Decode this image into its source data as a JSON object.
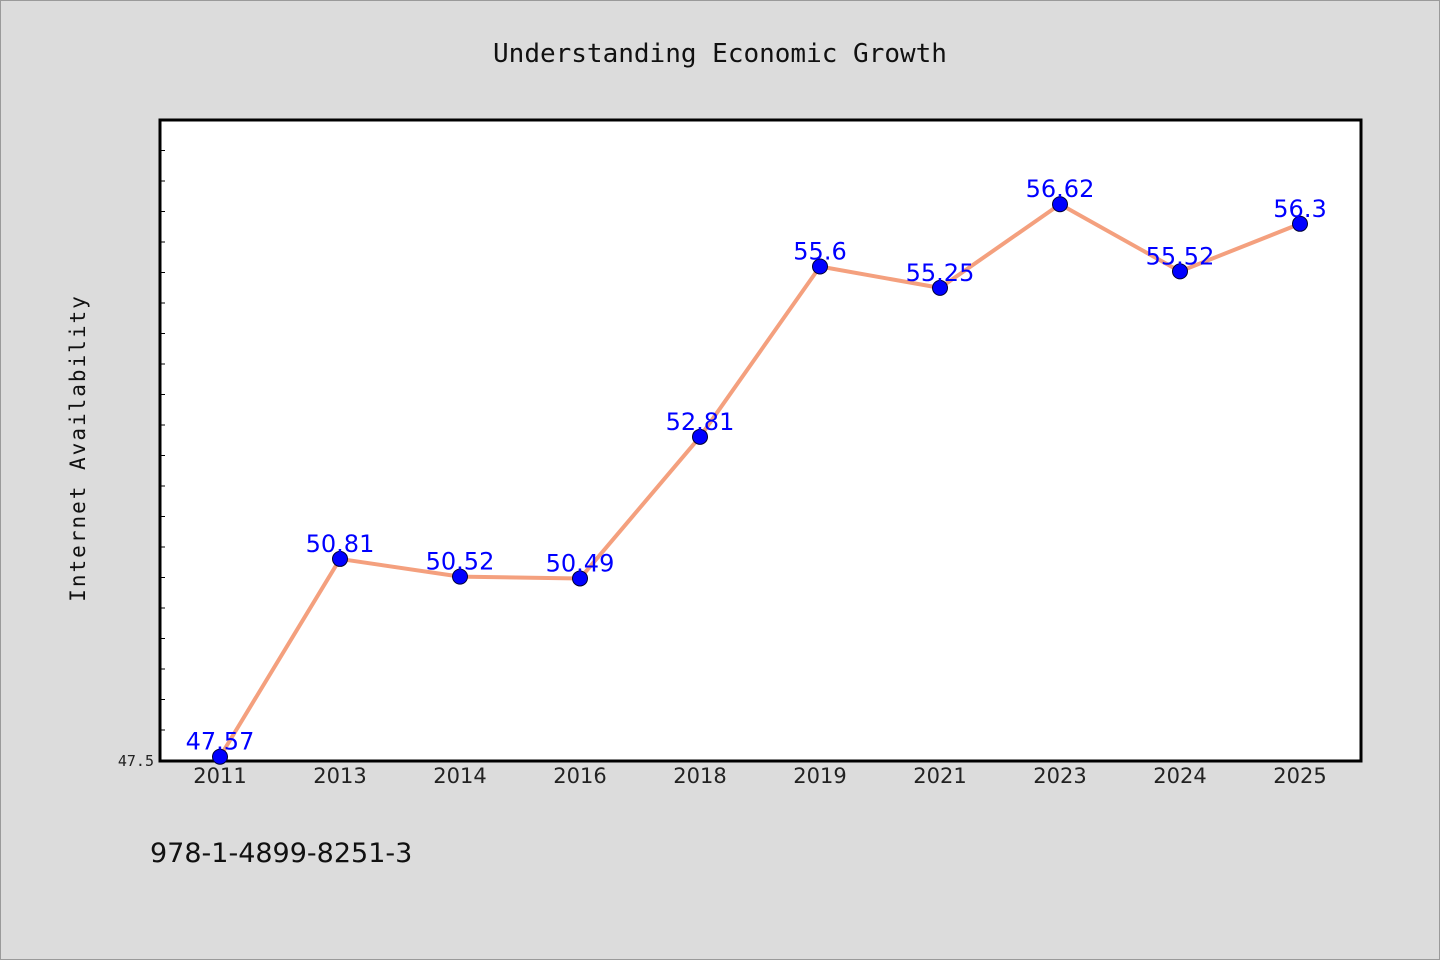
{
  "chart_data": {
    "type": "line",
    "title": "Understanding Economic Growth",
    "ylabel": "Internet Availability",
    "xlabel": "",
    "categories": [
      "2011",
      "2013",
      "2014",
      "2016",
      "2018",
      "2019",
      "2021",
      "2023",
      "2024",
      "2025"
    ],
    "series": [
      {
        "values": [
          47.57,
          50.81,
          50.52,
          50.49,
          52.81,
          55.6,
          55.25,
          56.62,
          55.52,
          56.3
        ],
        "labels": [
          "47.57",
          "50.81",
          "50.52",
          "50.49",
          "52.81",
          "55.6",
          "55.25",
          "56.62",
          "55.52",
          "56.3"
        ],
        "line_color": "#f4a07e",
        "marker_color": "#0000ff"
      }
    ],
    "ylim": [
      47.5,
      58.0
    ],
    "yticks": [
      "47.5"
    ],
    "grid": false,
    "legend": "none"
  },
  "footer": {
    "isbn": "978-1-4899-8251-3"
  }
}
